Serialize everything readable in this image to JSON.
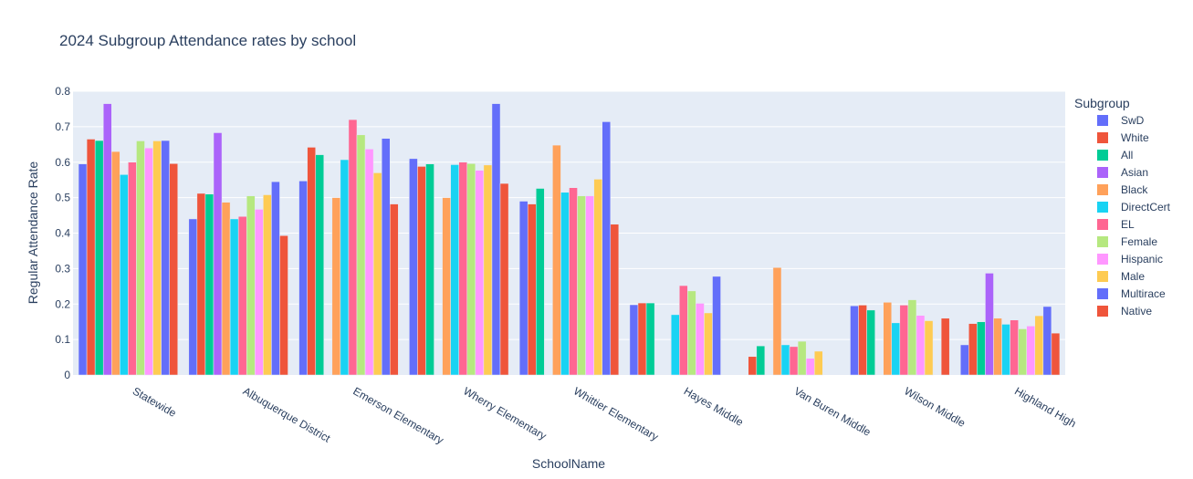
{
  "chart_data": {
    "type": "bar",
    "barmode": "group",
    "title": "2024 Subgroup Attendance rates by school",
    "xlabel": "SchoolName",
    "ylabel": "Regular Attendance Rate",
    "ylim": [
      0,
      0.8
    ],
    "yticks": [
      "0",
      "0.1",
      "0.2",
      "0.3",
      "0.4",
      "0.5",
      "0.6",
      "0.7",
      "0.8"
    ],
    "grid": true,
    "legend_title": "Subgroup",
    "legend_position": "right",
    "plot_background": "#e5ecf6",
    "categories": [
      "Statewide",
      "Albuquerque District",
      "Emerson Elementary",
      "Wherry Elementary",
      "Whittier Elementary",
      "Hayes Middle",
      "Van Buren Middle",
      "Wilson Middle",
      "Highland High"
    ],
    "series": [
      {
        "name": "SwD",
        "color": "#636efa",
        "values": [
          0.595,
          0.44,
          0.547,
          0.61,
          0.49,
          0.198,
          null,
          0.195,
          0.085
        ]
      },
      {
        "name": "White",
        "color": "#EF553B",
        "values": [
          0.665,
          0.512,
          0.642,
          0.588,
          0.482,
          0.203,
          0.052,
          0.197,
          0.145
        ]
      },
      {
        "name": "All",
        "color": "#00cc96",
        "values": [
          0.661,
          0.51,
          0.621,
          0.595,
          0.526,
          0.203,
          0.082,
          0.183,
          0.15
        ]
      },
      {
        "name": "Asian",
        "color": "#ab63fa",
        "values": [
          0.765,
          0.683,
          null,
          null,
          null,
          null,
          null,
          null,
          0.287
        ]
      },
      {
        "name": "Black",
        "color": "#FFA15A",
        "values": [
          0.63,
          0.487,
          0.5,
          0.5,
          0.648,
          null,
          0.303,
          0.205,
          0.16
        ]
      },
      {
        "name": "DirectCert",
        "color": "#19d3f3",
        "values": [
          0.565,
          0.44,
          0.607,
          0.593,
          0.515,
          0.17,
          0.085,
          0.147,
          0.143
        ]
      },
      {
        "name": "EL",
        "color": "#FF6692",
        "values": [
          0.6,
          0.447,
          0.72,
          0.6,
          0.528,
          0.252,
          0.08,
          0.197,
          0.155
        ]
      },
      {
        "name": "Female",
        "color": "#B6E880",
        "values": [
          0.66,
          0.505,
          0.677,
          0.596,
          0.505,
          0.237,
          0.095,
          0.212,
          0.13
        ]
      },
      {
        "name": "Hispanic",
        "color": "#FF97FF",
        "values": [
          0.64,
          0.467,
          0.637,
          0.577,
          0.505,
          0.202,
          0.047,
          0.168,
          0.138
        ]
      },
      {
        "name": "Male",
        "color": "#FECB52",
        "values": [
          0.66,
          0.508,
          0.57,
          0.592,
          0.552,
          0.175,
          0.067,
          0.153,
          0.167
        ]
      },
      {
        "name": "Multirace",
        "color": "#636efa",
        "values": [
          0.661,
          0.545,
          0.667,
          0.765,
          0.714,
          0.278,
          null,
          null,
          0.193
        ]
      },
      {
        "name": "Native",
        "color": "#EF553B",
        "values": [
          0.596,
          0.393,
          0.482,
          0.54,
          0.425,
          null,
          null,
          0.16,
          0.118
        ]
      }
    ]
  }
}
